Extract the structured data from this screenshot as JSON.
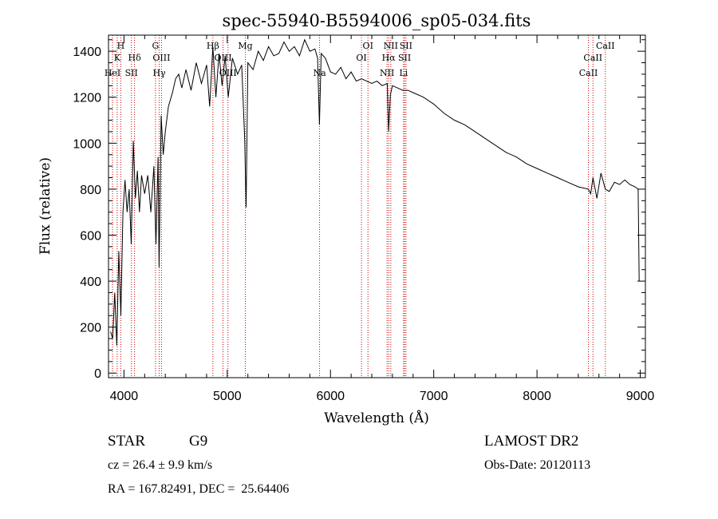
{
  "chart_data": {
    "type": "line",
    "title": "spec-55940-B5594006_sp05-034.fits",
    "xlabel": "Wavelength (Å)",
    "ylabel": "Flux (relative)",
    "xlim": [
      3850,
      9050
    ],
    "ylim": [
      -20,
      1470
    ],
    "x_ticks": [
      4000,
      5000,
      6000,
      7000,
      8000,
      9000
    ],
    "y_ticks": [
      0,
      200,
      400,
      600,
      800,
      1000,
      1200,
      1400
    ],
    "grid": false,
    "legend": "none",
    "line_color": "#000000",
    "marker_color": "#cc0000",
    "spectrum": {
      "x": [
        3870,
        3890,
        3910,
        3930,
        3950,
        3970,
        3990,
        4010,
        4030,
        4050,
        4070,
        4090,
        4110,
        4130,
        4150,
        4170,
        4200,
        4230,
        4260,
        4290,
        4310,
        4330,
        4340,
        4360,
        4380,
        4400,
        4430,
        4470,
        4500,
        4530,
        4560,
        4600,
        4650,
        4700,
        4750,
        4800,
        4830,
        4861,
        4890,
        4920,
        4950,
        4980,
        5010,
        5050,
        5100,
        5140,
        5170,
        5183,
        5200,
        5250,
        5300,
        5350,
        5400,
        5450,
        5500,
        5550,
        5600,
        5650,
        5700,
        5750,
        5800,
        5850,
        5875,
        5893,
        5910,
        5950,
        6000,
        6050,
        6100,
        6150,
        6200,
        6250,
        6300,
        6350,
        6400,
        6450,
        6500,
        6550,
        6563,
        6580,
        6600,
        6650,
        6700,
        6750,
        6800,
        6900,
        7000,
        7100,
        7200,
        7300,
        7400,
        7500,
        7600,
        7700,
        7800,
        7900,
        8000,
        8100,
        8200,
        8300,
        8400,
        8498,
        8520,
        8542,
        8580,
        8620,
        8662,
        8700,
        8750,
        8800,
        8850,
        8900,
        8950,
        8980,
        8990
      ],
      "y": [
        180,
        150,
        350,
        120,
        530,
        250,
        700,
        840,
        700,
        800,
        560,
        1010,
        760,
        880,
        700,
        860,
        780,
        860,
        700,
        900,
        560,
        940,
        460,
        1120,
        950,
        1050,
        1160,
        1220,
        1280,
        1300,
        1240,
        1320,
        1230,
        1350,
        1260,
        1340,
        1160,
        1420,
        1200,
        1390,
        1250,
        1380,
        1200,
        1370,
        1300,
        1340,
        1010,
        720,
        1350,
        1320,
        1400,
        1360,
        1420,
        1380,
        1390,
        1440,
        1400,
        1420,
        1380,
        1450,
        1400,
        1410,
        1370,
        1080,
        1390,
        1370,
        1310,
        1300,
        1330,
        1280,
        1310,
        1270,
        1280,
        1270,
        1260,
        1270,
        1250,
        1260,
        1050,
        1210,
        1250,
        1240,
        1230,
        1230,
        1220,
        1200,
        1170,
        1130,
        1100,
        1080,
        1050,
        1020,
        990,
        960,
        940,
        910,
        890,
        870,
        850,
        830,
        810,
        800,
        780,
        850,
        760,
        870,
        800,
        790,
        830,
        820,
        840,
        820,
        810,
        800,
        400
      ]
    },
    "lines": [
      {
        "name": "HeI",
        "wl": 3889,
        "row": 3
      },
      {
        "name": "K",
        "wl": 3934,
        "row": 2
      },
      {
        "name": "H",
        "wl": 3969,
        "row": 1
      },
      {
        "name": "SII",
        "wl": 4072,
        "row": 3
      },
      {
        "name": "Hδ",
        "wl": 4102,
        "row": 2
      },
      {
        "name": "Hγ",
        "wl": 4341,
        "row": 3
      },
      {
        "name": "OIII",
        "wl": 4363,
        "row": 2
      },
      {
        "name": "G",
        "wl": 4305,
        "row": 1
      },
      {
        "name": "Hβ",
        "wl": 4861,
        "row": 1
      },
      {
        "name": "OIII",
        "wl": 4959,
        "row": 2
      },
      {
        "name": "OIII",
        "wl": 5007,
        "row": 3
      },
      {
        "name": "Mg",
        "wl": 5175,
        "row": 1
      },
      {
        "name": "Na",
        "wl": 5894,
        "row": 3
      },
      {
        "name": "OI",
        "wl": 6300,
        "row": 2
      },
      {
        "name": "OI",
        "wl": 6363,
        "row": 1
      },
      {
        "name": "NII",
        "wl": 6548,
        "row": 3
      },
      {
        "name": "Hα",
        "wl": 6563,
        "row": 2
      },
      {
        "name": "NII",
        "wl": 6584,
        "row": 1
      },
      {
        "name": "SII",
        "wl": 6717,
        "row": 2
      },
      {
        "name": "SII",
        "wl": 6731,
        "row": 1
      },
      {
        "name": "Li",
        "wl": 6708,
        "row": 3
      },
      {
        "name": "CaII",
        "wl": 8498,
        "row": 3
      },
      {
        "name": "CaII",
        "wl": 8542,
        "row": 2
      },
      {
        "name": "CaII",
        "wl": 8662,
        "row": 1
      }
    ]
  },
  "info": {
    "class_label": "STAR",
    "subclass": "G9",
    "survey": "LAMOST DR2",
    "cz": "cz = 26.4 ± 9.9 km/s",
    "obs_date": "Obs-Date: 20120113",
    "coords": "RA = 167.82491, DEC =  25.64406"
  }
}
